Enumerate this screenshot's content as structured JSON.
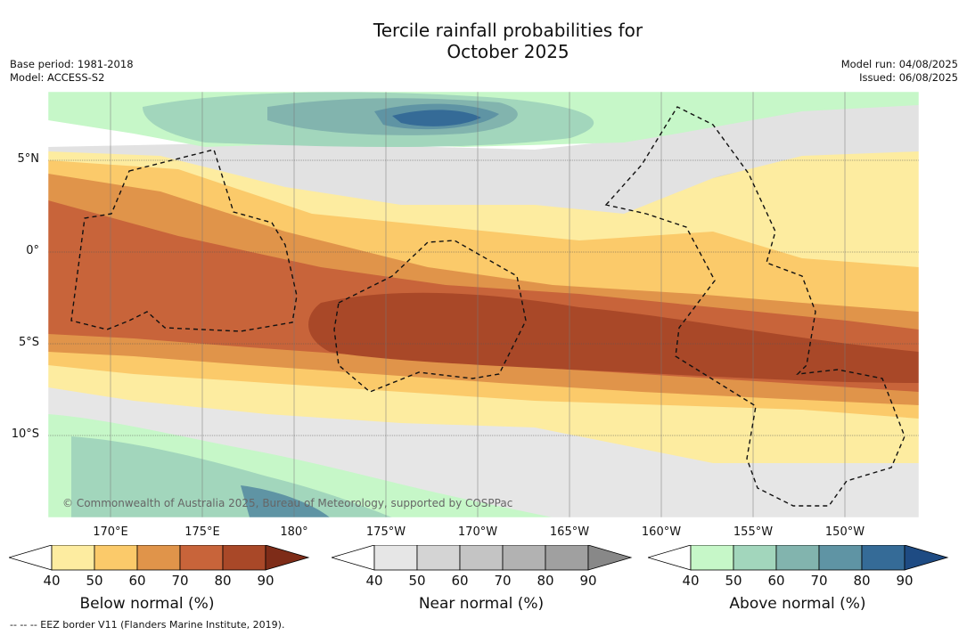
{
  "title_line1": "Tercile rainfall probabilities for",
  "title_line2": "October 2025",
  "meta_left": [
    "Base period: 1981-2018",
    "Model: ACCESS-S2"
  ],
  "meta_right": [
    "Model run: 04/08/2025",
    "Issued: 06/08/2025"
  ],
  "lat_labels": [
    "5°N",
    "0°",
    "5°S",
    "10°S"
  ],
  "lon_labels": [
    "170°E",
    "175°E",
    "180°",
    "175°W",
    "170°W",
    "165°W",
    "160°W",
    "155°W",
    "150°W"
  ],
  "copyright": "© Commonwealth of Australia 2025, Bureau of Meteorology, supported by COSPPac",
  "footnote": "-- -- -- EEZ border V11 (Flanders Marine Institute, 2019).",
  "colorbars": [
    {
      "label": "Below normal (%)",
      "ticks": [
        "40",
        "50",
        "60",
        "70",
        "80",
        "90"
      ],
      "colors": [
        "#ffffff",
        "#fdeca0",
        "#fbca6a",
        "#e0944a",
        "#c8643a",
        "#a94828",
        "#7e2c18"
      ]
    },
    {
      "label": "Near normal (%)",
      "ticks": [
        "40",
        "50",
        "60",
        "70",
        "80",
        "90"
      ],
      "colors": [
        "#ffffff",
        "#e6e6e6",
        "#d4d4d4",
        "#c4c4c4",
        "#b2b2b2",
        "#a0a0a0",
        "#888888"
      ]
    },
    {
      "label": "Above normal (%)",
      "ticks": [
        "40",
        "50",
        "60",
        "70",
        "80",
        "90"
      ],
      "colors": [
        "#ffffff",
        "#c6f7c8",
        "#a2d6bc",
        "#82b4ae",
        "#5f94a4",
        "#356b97",
        "#1e4b83"
      ]
    }
  ]
}
